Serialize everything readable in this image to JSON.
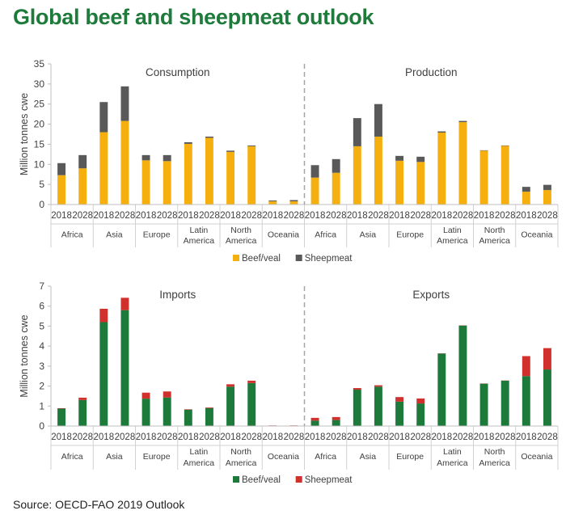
{
  "title": "Global beef and sheepmeat outlook",
  "source": "Source: OECD-FAO 2019 Outlook",
  "colors": {
    "beef_top": "#f5b00f",
    "sheep_top": "#595959",
    "beef_bottom": "#1d7a3a",
    "sheep_bottom": "#d0312d"
  },
  "chart_data": [
    {
      "type": "bar",
      "stacked": true,
      "ylabel": "Million tonnes cwe",
      "ylim": [
        0,
        35
      ],
      "yticks": [
        "0",
        "5",
        "10",
        "15",
        "20",
        "25",
        "30",
        "35"
      ],
      "panels": [
        {
          "title": "Consumption",
          "groups": [
            "Africa",
            "Asia",
            "Europe",
            "Latin America",
            "North America",
            "Oceania"
          ],
          "years": [
            "2018",
            "2028"
          ],
          "series": [
            {
              "name": "Beef/veal",
              "values": [
                7.3,
                9.0,
                18.0,
                20.8,
                11.0,
                10.8,
                15.1,
                16.6,
                13.1,
                14.5,
                0.8,
                0.8
              ]
            },
            {
              "name": "Sheepmeat",
              "values": [
                3.0,
                3.3,
                7.5,
                8.6,
                1.3,
                1.5,
                0.4,
                0.3,
                0.3,
                0.2,
                0.2,
                0.3
              ]
            }
          ]
        },
        {
          "title": "Production",
          "groups": [
            "Africa",
            "Asia",
            "Europe",
            "Latin America",
            "North America",
            "Oceania"
          ],
          "years": [
            "2018",
            "2028"
          ],
          "series": [
            {
              "name": "Beef/veal",
              "values": [
                6.7,
                7.9,
                14.5,
                16.9,
                10.9,
                10.6,
                17.9,
                20.5,
                13.4,
                14.6,
                3.2,
                3.6
              ]
            },
            {
              "name": "Sheepmeat",
              "values": [
                3.1,
                3.4,
                7.0,
                8.1,
                1.2,
                1.3,
                0.3,
                0.3,
                0.1,
                0.1,
                1.2,
                1.3
              ]
            }
          ]
        }
      ],
      "legend": [
        "Beef/veal",
        "Sheepmeat"
      ],
      "legend_position": "bottom",
      "grid": false
    },
    {
      "type": "bar",
      "stacked": true,
      "ylabel": "Million tonnes cwe",
      "ylim": [
        0,
        7
      ],
      "yticks": [
        "0",
        "1",
        "2",
        "3",
        "4",
        "5",
        "6",
        "7"
      ],
      "panels": [
        {
          "title": "Imports",
          "groups": [
            "Africa",
            "Asia",
            "Europe",
            "Latin America",
            "North America",
            "Oceania"
          ],
          "years": [
            "2018",
            "2028"
          ],
          "series": [
            {
              "name": "Beef/veal",
              "values": [
                0.87,
                1.3,
                5.2,
                5.8,
                1.37,
                1.43,
                0.82,
                0.9,
                1.97,
                2.15,
                0.02,
                0.02
              ]
            },
            {
              "name": "Sheepmeat",
              "values": [
                0.02,
                0.12,
                0.67,
                0.62,
                0.3,
                0.3,
                0.02,
                0.03,
                0.12,
                0.12,
                0.01,
                0.01
              ]
            }
          ]
        },
        {
          "title": "Exports",
          "groups": [
            "Africa",
            "Asia",
            "Europe",
            "Latin America",
            "North America",
            "Oceania"
          ],
          "years": [
            "2018",
            "2028"
          ],
          "series": [
            {
              "name": "Beef/veal",
              "values": [
                0.27,
                0.3,
                1.82,
                1.97,
                1.22,
                1.13,
                3.63,
                5.03,
                2.12,
                2.27,
                2.5,
                2.83
              ]
            },
            {
              "name": "Sheepmeat",
              "values": [
                0.14,
                0.15,
                0.08,
                0.07,
                0.23,
                0.25,
                0.01,
                0.01,
                0.01,
                0.01,
                1.0,
                1.07
              ]
            }
          ]
        }
      ],
      "legend": [
        "Beef/veal",
        "Sheepmeat"
      ],
      "legend_position": "bottom",
      "grid": false
    }
  ]
}
